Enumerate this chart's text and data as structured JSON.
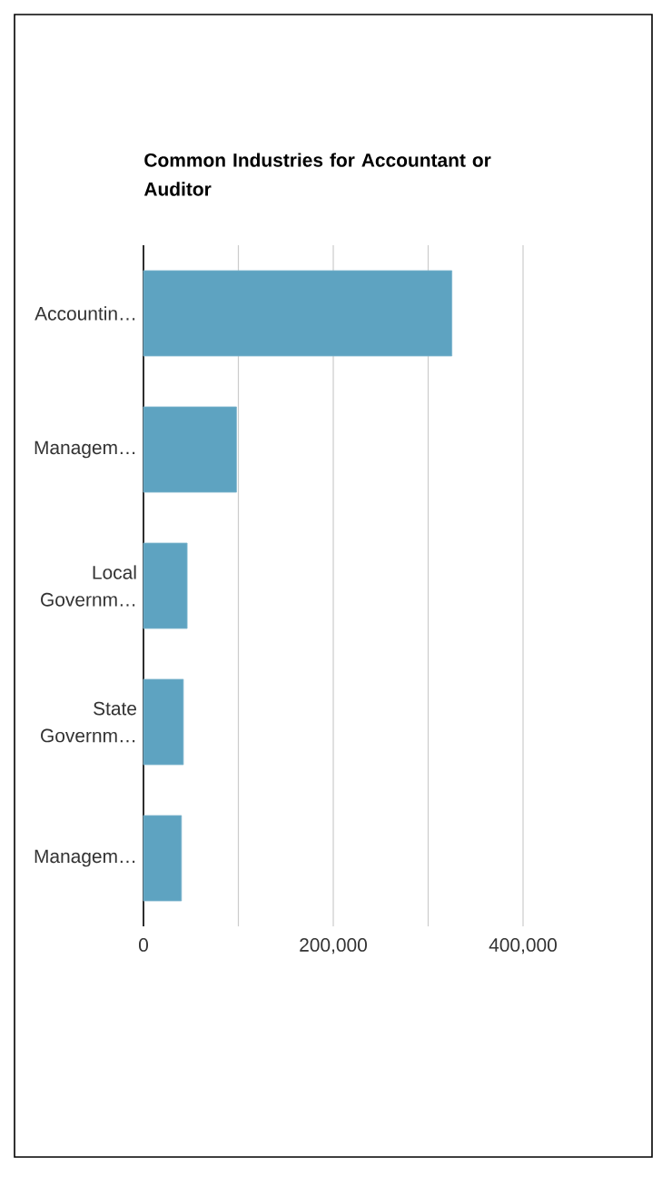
{
  "chart_data": {
    "type": "bar",
    "orientation": "horizontal",
    "title": "Common Industries for Accountant or Auditor",
    "categories": [
      "Accountin…",
      "Managem…",
      "Local Governm…",
      "State Governm…",
      "Managem…"
    ],
    "values": [
      325000,
      98000,
      46000,
      42000,
      40000
    ],
    "color": "#5ea3c1",
    "xlim": [
      0,
      400000
    ],
    "xticks": [
      0,
      {
        "value": 100000,
        "label": null
      },
      {
        "value": 200000,
        "label": "200,000"
      },
      {
        "value": 300000,
        "label": null
      },
      {
        "value": 400000,
        "label": "400,000"
      }
    ],
    "grid": "x"
  }
}
